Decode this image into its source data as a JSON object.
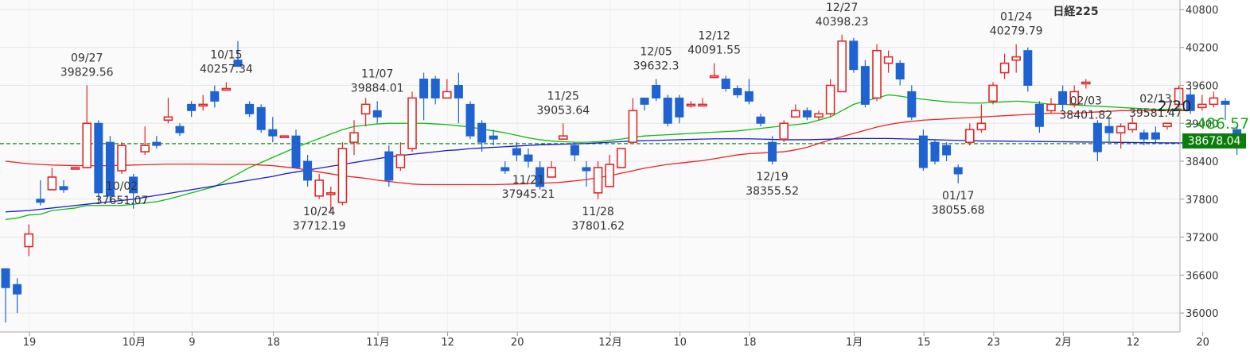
{
  "chart_data": {
    "type": "candlestick",
    "title": "日経225",
    "current_date_label": "2/20",
    "change_label": "−486.57",
    "last_price_label": "38678.04",
    "last_price": 38678.04,
    "ylim": [
      35700,
      40950
    ],
    "y_ticks": [
      40800,
      40200,
      39600,
      39000,
      38400,
      37800,
      37200,
      36600,
      36000
    ],
    "x_ticks": [
      {
        "label": "19",
        "index": 0
      },
      {
        "label": "10月",
        "index": 9
      },
      {
        "label": "9",
        "index": 14
      },
      {
        "label": "18",
        "index": 21
      },
      {
        "label": "11月",
        "index": 30
      },
      {
        "label": "12",
        "index": 36
      },
      {
        "label": "20",
        "index": 42
      },
      {
        "label": "12月",
        "index": 50
      },
      {
        "label": "10",
        "index": 56
      },
      {
        "label": "18",
        "index": 62
      },
      {
        "label": "1月",
        "index": 71
      },
      {
        "label": "15",
        "index": 77
      },
      {
        "label": "23",
        "index": 83
      },
      {
        "label": "2月",
        "index": 89
      },
      {
        "label": "12",
        "index": 95
      },
      {
        "label": "20",
        "index": 101
      }
    ],
    "candles": [
      [
        36700,
        36400,
        36700,
        35850
      ],
      [
        36450,
        36300,
        36550,
        36000
      ],
      [
        37050,
        37250,
        37400,
        36900
      ],
      [
        37800,
        37750,
        38100,
        37700
      ],
      [
        37950,
        38150,
        38300,
        37950
      ],
      [
        38000,
        37950,
        38100,
        37900
      ],
      [
        38300,
        38300,
        38300,
        38300
      ],
      [
        38300,
        39000,
        39600,
        38300
      ],
      [
        39000,
        37900,
        39050,
        37750
      ],
      [
        38700,
        37850,
        38800,
        37750
      ],
      [
        38250,
        38650,
        38700,
        38200
      ],
      [
        38150,
        37900,
        38200,
        37650
      ],
      [
        38550,
        38650,
        38950,
        38500
      ],
      [
        38700,
        38650,
        38800,
        38600
      ],
      [
        39050,
        39100,
        39400,
        39000
      ],
      [
        38950,
        38850,
        39000,
        38800
      ],
      [
        39300,
        39200,
        39350,
        39100
      ],
      [
        39300,
        39300,
        39450,
        39200
      ],
      [
        39500,
        39350,
        39600,
        39250
      ],
      [
        39550,
        39550,
        39650,
        39550
      ],
      [
        40000,
        39900,
        40300,
        39900
      ],
      [
        39300,
        39150,
        39350,
        39100
      ],
      [
        39250,
        38900,
        39300,
        38850
      ],
      [
        38900,
        38800,
        39100,
        38700
      ],
      [
        38800,
        38800,
        38800,
        38800
      ],
      [
        38800,
        38300,
        38900,
        38300
      ],
      [
        38400,
        38100,
        38500,
        38000
      ],
      [
        37850,
        38100,
        38200,
        37800
      ],
      [
        37900,
        37900,
        38000,
        37600
      ],
      [
        37750,
        38600,
        38700,
        37700
      ],
      [
        38700,
        38850,
        39050,
        38500
      ],
      [
        39150,
        39300,
        39400,
        38950
      ],
      [
        39200,
        39100,
        39350,
        39000
      ],
      [
        38550,
        38100,
        38650,
        38000
      ],
      [
        38300,
        38500,
        38700,
        38250
      ],
      [
        38600,
        39400,
        39500,
        38550
      ],
      [
        39700,
        39400,
        39800,
        39050
      ],
      [
        39700,
        39400,
        39750,
        39300
      ],
      [
        39400,
        39500,
        39700,
        39400
      ],
      [
        39600,
        39400,
        39800,
        39000
      ],
      [
        39300,
        38800,
        39350,
        38750
      ],
      [
        39000,
        38700,
        39050,
        38550
      ],
      [
        38800,
        38750,
        38900,
        38650
      ],
      [
        38300,
        38250,
        38400,
        38200
      ],
      [
        38600,
        38500,
        38700,
        38400
      ],
      [
        38500,
        38400,
        38600,
        38300
      ],
      [
        38300,
        38000,
        38400,
        37950
      ],
      [
        38150,
        38300,
        38400,
        38150
      ],
      [
        38750,
        38800,
        39000,
        38750
      ],
      [
        38650,
        38500,
        38700,
        38400
      ],
      [
        38300,
        38250,
        38400,
        38000
      ],
      [
        37900,
        38300,
        38400,
        37800
      ],
      [
        38000,
        38350,
        38500,
        38000
      ],
      [
        38300,
        38600,
        38600,
        38300
      ],
      [
        38700,
        39200,
        39400,
        38700
      ],
      [
        39400,
        39300,
        39400,
        39200
      ],
      [
        39600,
        39400,
        39700,
        39350
      ],
      [
        39400,
        39000,
        39450,
        38950
      ],
      [
        39400,
        39100,
        39450,
        39000
      ],
      [
        39300,
        39300,
        39350,
        39250
      ],
      [
        39300,
        39300,
        39400,
        39300
      ],
      [
        39750,
        39750,
        39950,
        39750
      ],
      [
        39700,
        39550,
        39750,
        39500
      ],
      [
        39550,
        39450,
        39600,
        39400
      ],
      [
        39500,
        39350,
        39700,
        39300
      ],
      [
        39100,
        39000,
        39150,
        38950
      ],
      [
        38700,
        38400,
        38800,
        38350
      ],
      [
        38750,
        39000,
        39050,
        38700
      ],
      [
        39100,
        39200,
        39300,
        39100
      ],
      [
        39200,
        39100,
        39250,
        39050
      ],
      [
        39100,
        39150,
        39200,
        39050
      ],
      [
        39150,
        39600,
        39700,
        39100
      ],
      [
        39500,
        40300,
        40400,
        39500
      ],
      [
        40300,
        39850,
        40350,
        39800
      ],
      [
        39900,
        39300,
        40000,
        39250
      ],
      [
        39400,
        40150,
        40250,
        39350
      ],
      [
        39950,
        40050,
        40150,
        39800
      ],
      [
        39950,
        39700,
        40000,
        39600
      ],
      [
        39500,
        39100,
        39600,
        39050
      ],
      [
        38800,
        38300,
        38900,
        38250
      ],
      [
        38700,
        38400,
        38750,
        38350
      ],
      [
        38650,
        38500,
        38700,
        38400
      ],
      [
        38300,
        38200,
        38350,
        38050
      ],
      [
        38700,
        38900,
        39000,
        38650
      ],
      [
        38900,
        39000,
        39300,
        38850
      ],
      [
        39350,
        39600,
        39650,
        39300
      ],
      [
        39800,
        39950,
        40100,
        39700
      ],
      [
        40000,
        40050,
        40250,
        39800
      ],
      [
        40150,
        39600,
        40200,
        39500
      ],
      [
        39300,
        38950,
        39350,
        38850
      ],
      [
        39200,
        39300,
        39400,
        39150
      ],
      [
        39500,
        39300,
        39600,
        39200
      ],
      [
        39300,
        39500,
        39600,
        39250
      ],
      [
        39650,
        39650,
        39700,
        39550
      ],
      [
        39000,
        38550,
        39050,
        38400
      ],
      [
        38950,
        38850,
        39100,
        38700
      ],
      [
        38850,
        38950,
        39000,
        38600
      ],
      [
        38900,
        39000,
        39100,
        38850
      ],
      [
        38850,
        38750,
        38900,
        38650
      ],
      [
        38850,
        38750,
        38950,
        38700
      ],
      [
        38950,
        39000,
        39000,
        38900
      ],
      [
        39300,
        39550,
        39600,
        39250
      ],
      [
        39450,
        39200,
        39550,
        39150
      ],
      [
        39250,
        39300,
        39450,
        39200
      ],
      [
        39300,
        39400,
        39500,
        39250
      ],
      [
        39350,
        39300,
        39400,
        39050
      ],
      [
        38900,
        38700,
        38950,
        38500
      ]
    ],
    "series": [
      {
        "color": "#11bb11",
        "values": [
          37480,
          37500,
          37550,
          37560,
          37620,
          37640,
          37660,
          37700,
          37700,
          37700,
          37700,
          37720,
          37740,
          37760,
          37800,
          37850,
          37900,
          37950,
          38000,
          38100,
          38200,
          38300,
          38380,
          38460,
          38540,
          38620,
          38690,
          38760,
          38830,
          38900,
          38950,
          38970,
          38990,
          39000,
          39000,
          39000,
          39000,
          38990,
          38980,
          38960,
          38940,
          38910,
          38880,
          38850,
          38810,
          38770,
          38740,
          38720,
          38710,
          38700,
          38700,
          38710,
          38730,
          38750,
          38780,
          38800,
          38810,
          38820,
          38830,
          38840,
          38850,
          38860,
          38870,
          38880,
          38900,
          38920,
          38940,
          38960,
          38980,
          39000,
          39050,
          39100,
          39200,
          39300,
          39350,
          39400,
          39450,
          39430,
          39400,
          39380,
          39360,
          39340,
          39330,
          39320,
          39320,
          39330,
          39340,
          39350,
          39340,
          39320,
          39300,
          39300,
          39290,
          39280,
          39270,
          39260,
          39250,
          39240,
          39230,
          39220,
          39220,
          39220,
          39200
        ]
      },
      {
        "color": "#ee2222",
        "values": [
          38400,
          38380,
          38360,
          38350,
          38340,
          38335,
          38330,
          38330,
          38330,
          38330,
          38335,
          38340,
          38345,
          38350,
          38355,
          38355,
          38355,
          38355,
          38350,
          38350,
          38350,
          38350,
          38340,
          38330,
          38310,
          38290,
          38260,
          38230,
          38200,
          38170,
          38150,
          38130,
          38100,
          38080,
          38060,
          38040,
          38030,
          38030,
          38030,
          38030,
          38030,
          38030,
          38030,
          38035,
          38040,
          38045,
          38050,
          38060,
          38070,
          38090,
          38110,
          38140,
          38170,
          38210,
          38250,
          38290,
          38320,
          38350,
          38370,
          38390,
          38410,
          38440,
          38470,
          38500,
          38520,
          38530,
          38540,
          38550,
          38580,
          38620,
          38680,
          38740,
          38790,
          38840,
          38890,
          38940,
          38980,
          39010,
          39030,
          39050,
          39060,
          39070,
          39080,
          39090,
          39100,
          39110,
          39120,
          39130,
          39140,
          39150,
          39160,
          39160,
          39160,
          39170,
          39180,
          39190,
          39200,
          39200,
          39200,
          39200,
          39200,
          39200,
          39200
        ]
      },
      {
        "color": "#1a1acc",
        "values": [
          37600,
          37610,
          37620,
          37640,
          37660,
          37680,
          37700,
          37720,
          37740,
          37760,
          37780,
          37800,
          37830,
          37860,
          37890,
          37920,
          37950,
          37980,
          38010,
          38040,
          38070,
          38100,
          38130,
          38160,
          38200,
          38230,
          38260,
          38290,
          38320,
          38350,
          38380,
          38410,
          38440,
          38470,
          38490,
          38510,
          38530,
          38550,
          38570,
          38580,
          38600,
          38610,
          38620,
          38630,
          38640,
          38650,
          38660,
          38665,
          38670,
          38675,
          38680,
          38690,
          38700,
          38710,
          38720,
          38725,
          38730,
          38735,
          38740,
          38745,
          38750,
          38755,
          38755,
          38755,
          38755,
          38750,
          38745,
          38740,
          38740,
          38740,
          38745,
          38750,
          38755,
          38760,
          38760,
          38760,
          38760,
          38755,
          38750,
          38745,
          38740,
          38735,
          38730,
          38725,
          38720,
          38720,
          38718,
          38716,
          38714,
          38712,
          38710,
          38708,
          38706,
          38704,
          38702,
          38700,
          38698,
          38696,
          38694,
          38692,
          38690,
          38690,
          38690
        ]
      }
    ],
    "annotations": [
      {
        "date": "10/15",
        "value": "40257.34",
        "index": 19,
        "pos": "above"
      },
      {
        "date": "09/27",
        "value": "39829.56",
        "index": 7,
        "pos": "above"
      },
      {
        "date": "10/02",
        "value": "37651.07",
        "index": 10,
        "pos": "below"
      },
      {
        "date": "11/07",
        "value": "39884.01",
        "index": 32,
        "pos": "above"
      },
      {
        "date": "10/24",
        "value": "37712.19",
        "index": 27,
        "pos": "below"
      },
      {
        "date": "11/25",
        "value": "39053.64",
        "index": 48,
        "pos": "above"
      },
      {
        "date": "11/21",
        "value": "37945.21",
        "index": 45,
        "pos": "below"
      },
      {
        "date": "11/28",
        "value": "37801.62",
        "index": 51,
        "pos": "below"
      },
      {
        "date": "12/05",
        "value": "39632.3",
        "index": 56,
        "pos": "above"
      },
      {
        "date": "12/12",
        "value": "40091.55",
        "index": 61,
        "pos": "above"
      },
      {
        "date": "12/19",
        "value": "38355.52",
        "index": 66,
        "pos": "below"
      },
      {
        "date": "12/27",
        "value": "40398.23",
        "index": 72,
        "pos": "above"
      },
      {
        "date": "01/17",
        "value": "38055.68",
        "index": 82,
        "pos": "below"
      },
      {
        "date": "01/24",
        "value": "40279.79",
        "index": 87,
        "pos": "above"
      },
      {
        "date": "02/03",
        "value": "38401.82",
        "index": 93,
        "pos": "below"
      },
      {
        "date": "02/13",
        "value": "39581.47",
        "index": 99,
        "pos": "above"
      }
    ],
    "colors": {
      "up": "#e12828",
      "down": "#1f63d2",
      "accent_green": "#11aa11",
      "grid": "#e6e6e6"
    }
  }
}
